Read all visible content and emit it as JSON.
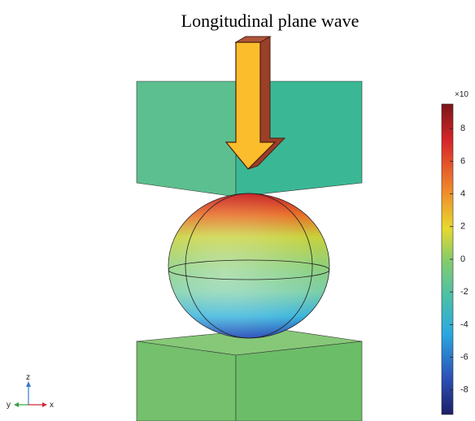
{
  "title": "Longitudinal plane wave",
  "colorbar": {
    "label": "×10",
    "range": [
      -9.5,
      9.5
    ],
    "ticks": [
      8,
      6,
      4,
      2,
      0,
      -2,
      -4,
      -6,
      -8
    ]
  },
  "triad": {
    "z": "z",
    "y": "y",
    "x": "x"
  }
}
